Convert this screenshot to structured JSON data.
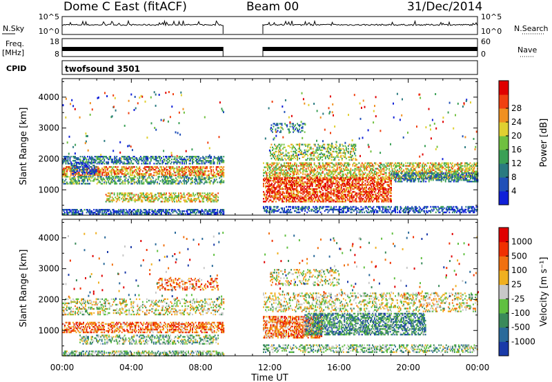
{
  "header": {
    "title": "Dome C East (fitACF)",
    "beam": "Beam 00",
    "date": "31/Dec/2014"
  },
  "labels": {
    "nsky": "N.Sky",
    "freq": "Freq.",
    "freq_unit": "[MHz]",
    "cpid": "CPID",
    "nsearch": "N.Search",
    "nave": "Nave",
    "cpid_value": "twofsound 3501",
    "nsky_ticks": [
      "10^5",
      "10^0"
    ],
    "freq_ticks": [
      "18",
      "8"
    ],
    "nave_ticks": [
      "60",
      "0"
    ]
  },
  "chart_data": [
    {
      "type": "heatmap",
      "title": "Power",
      "xlabel": "Time UT",
      "ylabel": "Slant Range [km]",
      "x_ticks": [
        "00:00",
        "04:00",
        "08:00",
        "12:00",
        "16:00",
        "20:00",
        "00:00"
      ],
      "xlim": [
        0,
        24
      ],
      "ylim": [
        180,
        4600
      ],
      "y_ticks": [
        1000,
        2000,
        3000,
        4000
      ],
      "colorbar": {
        "label": "Power [dB]",
        "ticks": [
          "4",
          "8",
          "12",
          "16",
          "20",
          "24",
          "28"
        ],
        "colors": [
          "#1020d8",
          "#2050b8",
          "#2a7a80",
          "#3aa055",
          "#70c040",
          "#e0d030",
          "#f09020",
          "#f04010",
          "#e00000"
        ]
      },
      "data_gap_hours": [
        9.3,
        11.6
      ]
    },
    {
      "type": "heatmap",
      "title": "Velocity",
      "xlabel": "Time UT",
      "ylabel": "Slant Range [km]",
      "x_ticks": [
        "00:00",
        "04:00",
        "08:00",
        "12:00",
        "16:00",
        "20:00",
        "00:00"
      ],
      "xlim": [
        0,
        24
      ],
      "ylim": [
        180,
        4600
      ],
      "y_ticks": [
        1000,
        2000,
        3000,
        4000
      ],
      "colorbar": {
        "label": "Velocity [m s⁻¹]",
        "ticks": [
          "1000",
          "500",
          "100",
          "25",
          "-25",
          "-100",
          "-500",
          "-1000"
        ],
        "colors": [
          "#1a3aa8",
          "#2a6a9a",
          "#3a8a5a",
          "#60c040",
          "#c8c8c8",
          "#f0b020",
          "#f07010",
          "#f03000",
          "#e00000"
        ]
      },
      "data_gap_hours": [
        9.3,
        11.6
      ]
    }
  ]
}
